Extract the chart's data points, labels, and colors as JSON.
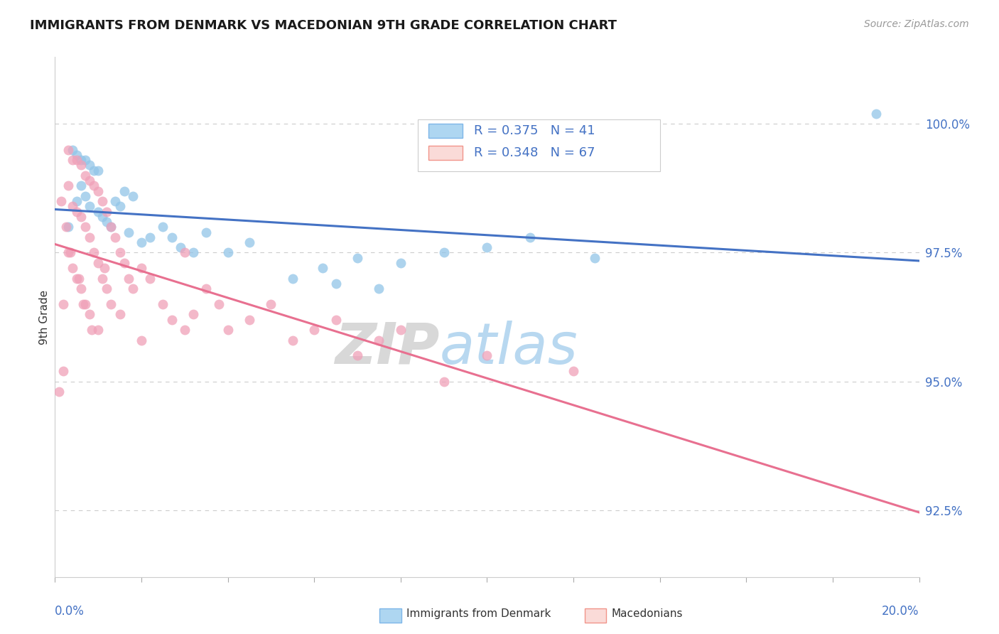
{
  "title": "IMMIGRANTS FROM DENMARK VS MACEDONIAN 9TH GRADE CORRELATION CHART",
  "source": "Source: ZipAtlas.com",
  "ylabel": "9th Grade",
  "xlim": [
    0.0,
    20.0
  ],
  "ylim": [
    91.2,
    101.3
  ],
  "yticks": [
    92.5,
    95.0,
    97.5,
    100.0
  ],
  "ytick_labels": [
    "92.5%",
    "95.0%",
    "97.5%",
    "100.0%"
  ],
  "denmark_color": "#92C5E8",
  "macedonian_color": "#F0A0B8",
  "denmark_line_color": "#4472C4",
  "macedonian_line_color": "#E87090",
  "denmark_R": 0.375,
  "denmark_N": 41,
  "macedonian_R": 0.348,
  "macedonian_N": 67,
  "axis_label_color": "#4472C4",
  "grid_color": "#cccccc",
  "background_color": "#ffffff",
  "watermark_zip": "ZIP",
  "watermark_atlas": "atlas",
  "title_fontsize": 13,
  "source_fontsize": 10,
  "ytick_fontsize": 12,
  "legend_denmark_label": "Immigrants from Denmark",
  "legend_macedonian_label": "Macedonians"
}
